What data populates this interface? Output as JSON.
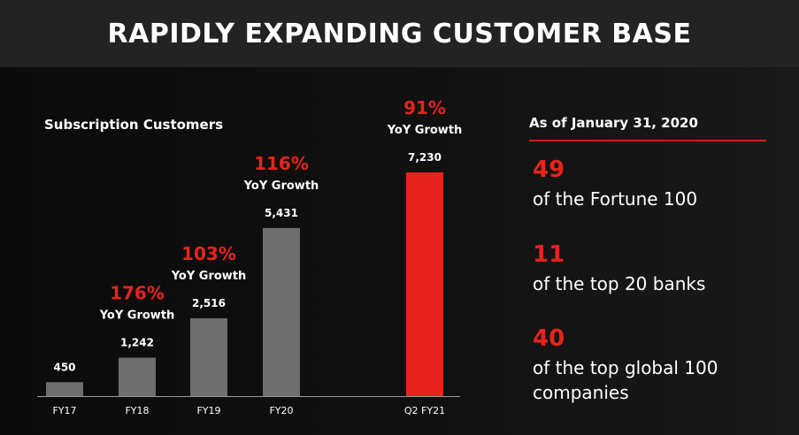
{
  "header": {
    "title": "RAPIDLY EXPANDING CUSTOMER BASE"
  },
  "chart_data": {
    "type": "bar",
    "title": "Subscription Customers",
    "categories": [
      "FY17",
      "FY18",
      "FY19",
      "FY20",
      "Q2 FY21"
    ],
    "values": [
      450,
      1242,
      2516,
      5431,
      7230
    ],
    "value_labels": [
      "450",
      "1,242",
      "2,516",
      "5,431",
      "7,230"
    ],
    "growth_labels": [
      "",
      "176%",
      "103%",
      "116%",
      "91%"
    ],
    "growth_caption": "YoY Growth",
    "colors": [
      "#6e6e6e",
      "#6e6e6e",
      "#6e6e6e",
      "#6e6e6e",
      "#e8231d"
    ],
    "ylim": [
      0,
      8000
    ],
    "grid": false
  },
  "stats": {
    "title": "As of January 31, 2020",
    "items": [
      {
        "value": "49",
        "desc": "of the Fortune 100"
      },
      {
        "value": "11",
        "desc": "of the top 20 banks"
      },
      {
        "value": "40",
        "desc": "of the top global 100 companies"
      }
    ]
  },
  "colors": {
    "accent": "#e8231d",
    "bar": "#6e6e6e",
    "background": "#151515",
    "header": "#232323"
  }
}
